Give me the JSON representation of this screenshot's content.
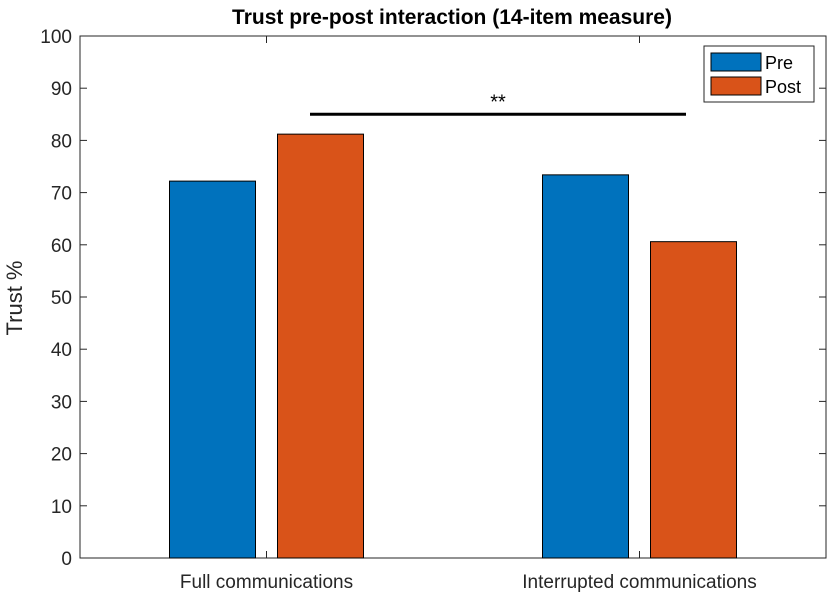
{
  "chart_data": {
    "type": "bar",
    "title": "Trust pre-post interaction (14-item measure)",
    "xlabel": "",
    "ylabel": "Trust %",
    "ylim": [
      0,
      100
    ],
    "yticks": [
      0,
      10,
      20,
      30,
      40,
      50,
      60,
      70,
      80,
      90,
      100
    ],
    "categories": [
      "Full communications",
      "Interrupted communications"
    ],
    "series": [
      {
        "name": "Pre",
        "values": [
          72.2,
          73.4
        ],
        "color": "#0072BD"
      },
      {
        "name": "Post",
        "values": [
          81.2,
          60.6
        ],
        "color": "#D95319"
      }
    ],
    "legend": {
      "position": "top-right",
      "entries": [
        "Pre",
        "Post"
      ]
    },
    "grid": false,
    "significance": {
      "label": "**",
      "y": 85
    }
  }
}
